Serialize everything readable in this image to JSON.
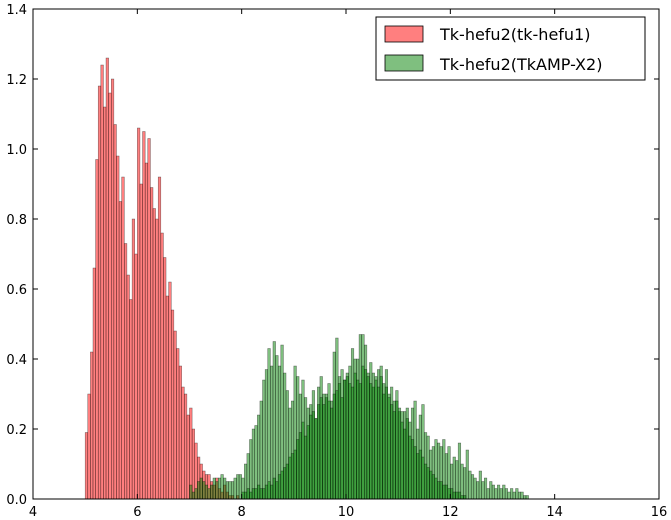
{
  "chart_data": {
    "type": "bar",
    "xlim": [
      4,
      16
    ],
    "ylim": [
      0,
      1.4
    ],
    "x_ticks": [
      "4",
      "6",
      "8",
      "10",
      "12",
      "14",
      "16"
    ],
    "y_ticks": [
      "0.0",
      "0.2",
      "0.4",
      "0.6",
      "0.8",
      "1.0",
      "1.2",
      "1.4"
    ],
    "grid": false,
    "legend_position": "top-right",
    "bin_width": 0.05,
    "series": [
      {
        "name": "Tk-hefu2(tk-hefu1)",
        "color": "#ff0000",
        "x_start": 5.0,
        "values": [
          0.19,
          0.3,
          0.42,
          0.66,
          0.97,
          1.18,
          1.24,
          1.12,
          1.26,
          1.16,
          1.2,
          1.07,
          0.98,
          0.85,
          0.92,
          0.73,
          0.64,
          0.57,
          0.8,
          0.7,
          1.06,
          0.9,
          1.05,
          0.96,
          1.03,
          0.89,
          0.83,
          0.8,
          0.92,
          0.76,
          0.69,
          0.58,
          0.62,
          0.54,
          0.48,
          0.43,
          0.38,
          0.32,
          0.3,
          0.24,
          0.26,
          0.2,
          0.16,
          0.12,
          0.1,
          0.08,
          0.07,
          0.07,
          0.05,
          0.04,
          0.06,
          0.03,
          0.02,
          0.04,
          0.02,
          0.01,
          0.01,
          0.0,
          0.01,
          0.0
        ]
      },
      {
        "name": "Tk-hefu2(TkAMP-X2)",
        "color": "#008000",
        "x_start": 7.0,
        "values": [
          0.04,
          0.02,
          0.03,
          0.05,
          0.06,
          0.05,
          0.04,
          0.03,
          0.04,
          0.06,
          0.05,
          0.06,
          0.07,
          0.06,
          0.05,
          0.05,
          0.05,
          0.06,
          0.07,
          0.07,
          0.06,
          0.1,
          0.13,
          0.17,
          0.2,
          0.21,
          0.24,
          0.28,
          0.34,
          0.37,
          0.43,
          0.38,
          0.45,
          0.41,
          0.38,
          0.44,
          0.36,
          0.31,
          0.26,
          0.28,
          0.38,
          0.35,
          0.3,
          0.34,
          0.29,
          0.26,
          0.27,
          0.31,
          0.23,
          0.32,
          0.35,
          0.3,
          0.29,
          0.33,
          0.28,
          0.42,
          0.46,
          0.35,
          0.37,
          0.34,
          0.36,
          0.38,
          0.43,
          0.4,
          0.4,
          0.47,
          0.47,
          0.44,
          0.36,
          0.39,
          0.32,
          0.35,
          0.37,
          0.38,
          0.33,
          0.37,
          0.3,
          0.32,
          0.28,
          0.31,
          0.25,
          0.25,
          0.25,
          0.26,
          0.22,
          0.26,
          0.28,
          0.2,
          0.24,
          0.27,
          0.19,
          0.18,
          0.14,
          0.15,
          0.17,
          0.16,
          0.15,
          0.17,
          0.13,
          0.15,
          0.1,
          0.12,
          0.11,
          0.16,
          0.1,
          0.09,
          0.14,
          0.08,
          0.07,
          0.06,
          0.05,
          0.08,
          0.05,
          0.06,
          0.03,
          0.05,
          0.04,
          0.03,
          0.04,
          0.03,
          0.04,
          0.03,
          0.02,
          0.03,
          0.02,
          0.03,
          0.02,
          0.02,
          0.01,
          0.01,
          0.0,
          0.0,
          0.0,
          0.0,
          0.0,
          0.0,
          0.0,
          0.0,
          0.0,
          0.0,
          0.0,
          0.0,
          0.0,
          0.0,
          0.0,
          0.0,
          0.0,
          0.0,
          0.0,
          0.0,
          0.0,
          0.0,
          0.0,
          0.0,
          0.0,
          0.0,
          0.0,
          0.0,
          0.0,
          0.0
        ]
      },
      {
        "name": "",
        "color": "#008000",
        "x_start": 8.0,
        "values": [
          0.02,
          0.02,
          0.03,
          0.02,
          0.03,
          0.03,
          0.04,
          0.03,
          0.03,
          0.04,
          0.05,
          0.04,
          0.06,
          0.05,
          0.07,
          0.08,
          0.09,
          0.1,
          0.12,
          0.13,
          0.14,
          0.17,
          0.19,
          0.22,
          0.18,
          0.21,
          0.24,
          0.25,
          0.23,
          0.27,
          0.29,
          0.27,
          0.3,
          0.28,
          0.26,
          0.3,
          0.31,
          0.33,
          0.29,
          0.34,
          0.35,
          0.33,
          0.32,
          0.36,
          0.34,
          0.33,
          0.38,
          0.37,
          0.35,
          0.33,
          0.36,
          0.34,
          0.32,
          0.35,
          0.3,
          0.32,
          0.29,
          0.27,
          0.25,
          0.28,
          0.26,
          0.22,
          0.2,
          0.23,
          0.18,
          0.17,
          0.15,
          0.13,
          0.14,
          0.12,
          0.1,
          0.09,
          0.08,
          0.07,
          0.06,
          0.05,
          0.05,
          0.04,
          0.04,
          0.03,
          0.03,
          0.02,
          0.02,
          0.02,
          0.01,
          0.01
        ]
      }
    ]
  }
}
